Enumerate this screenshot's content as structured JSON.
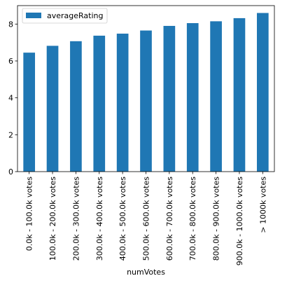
{
  "chart_data": {
    "type": "bar",
    "xlabel": "numVotes",
    "ylabel": "",
    "categories": [
      "0.0k - 100.0k votes",
      "100.0k - 200.0k votes",
      "200.0k - 300.0k votes",
      "300.0k - 400.0k votes",
      "400.0k - 500.0k votes",
      "500.0k - 600.0k votes",
      "600.0k - 700.0k votes",
      "700.0k - 800.0k votes",
      "800.0k - 900.0k votes",
      "900.0k - 1000.0k votes",
      "> 1000k votes"
    ],
    "series": [
      {
        "name": "averageRating",
        "color": "#1f77b4",
        "values": [
          6.45,
          6.82,
          7.07,
          7.37,
          7.48,
          7.65,
          7.9,
          8.05,
          8.15,
          8.32,
          8.6
        ]
      }
    ],
    "ylim": [
      0,
      9.0
    ],
    "yticks": [
      0,
      2,
      4,
      6,
      8
    ],
    "grid": false,
    "legend": "upper left"
  }
}
